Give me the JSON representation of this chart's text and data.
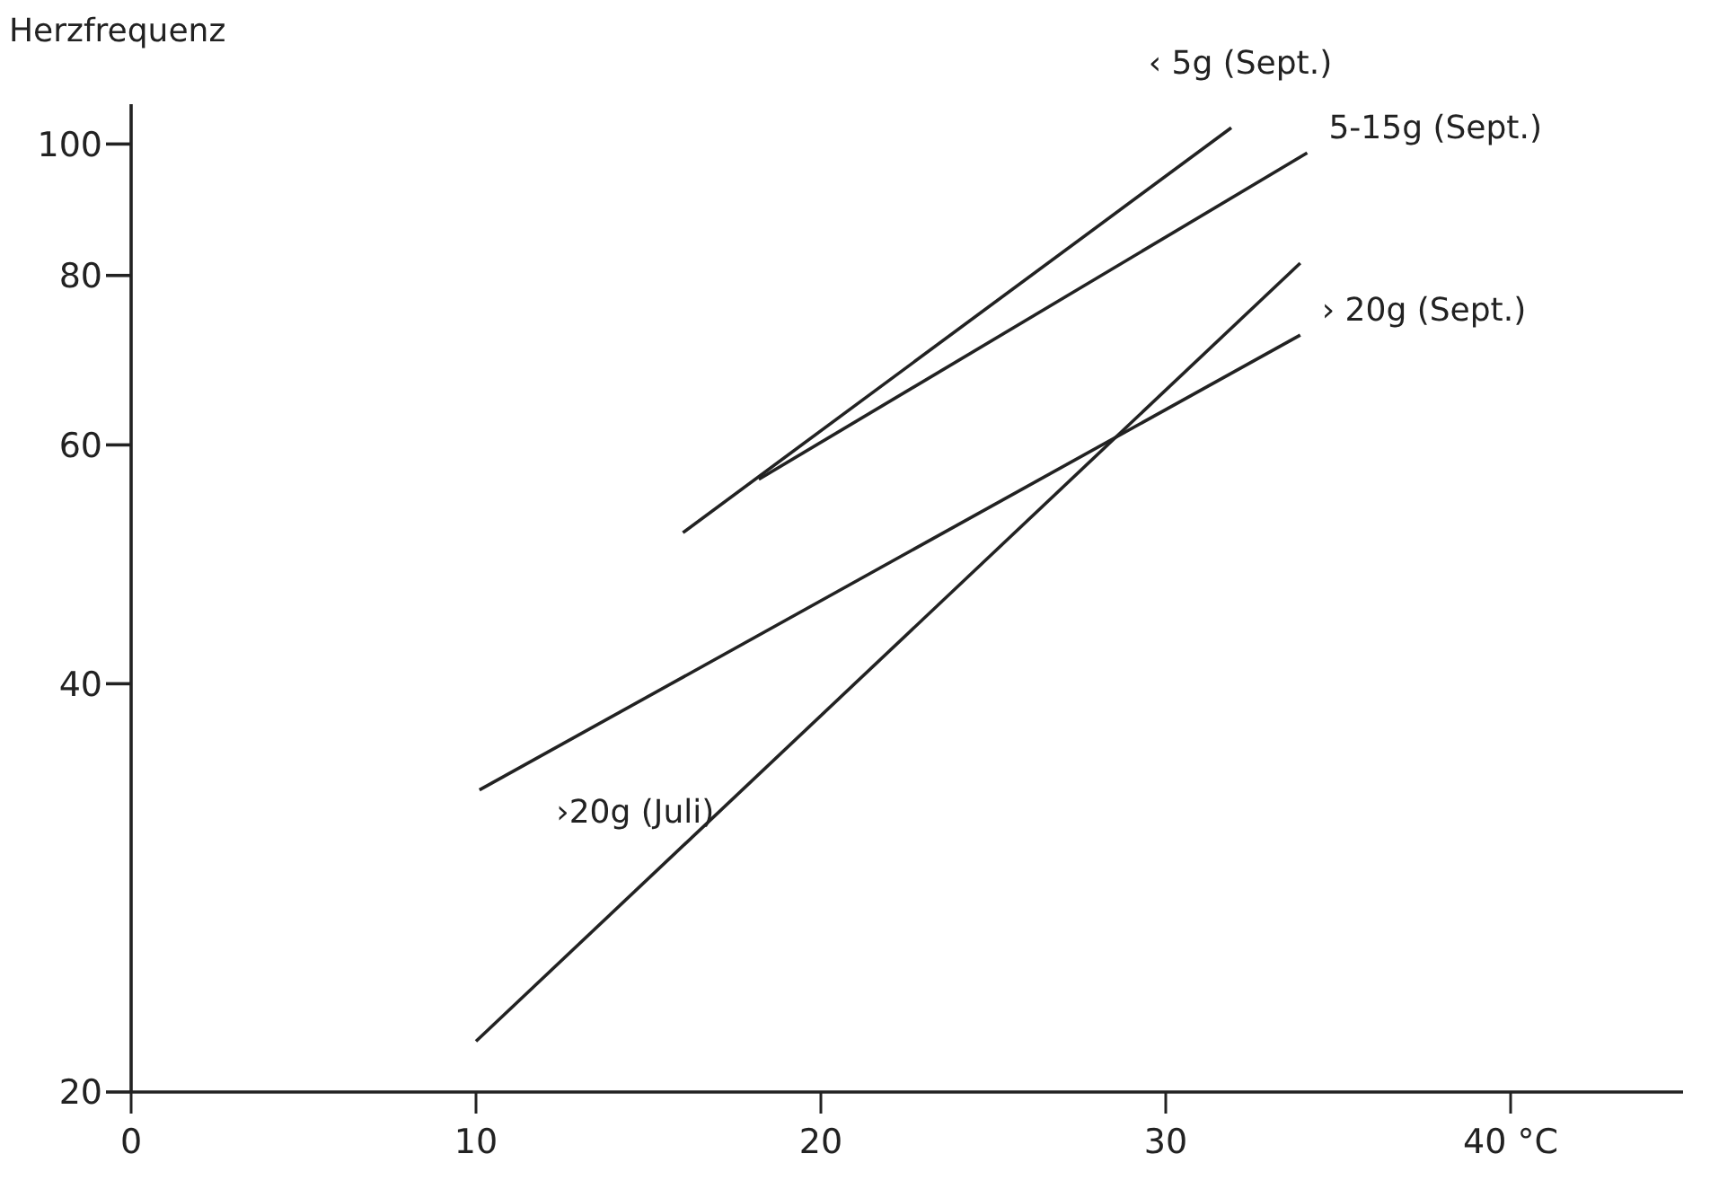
{
  "chart_data": {
    "type": "line",
    "ylabel": "Herzfrequenz",
    "log": "y",
    "xlim": [
      0,
      45
    ],
    "ylim": [
      20,
      107
    ],
    "xticks": [
      0,
      10,
      20,
      30,
      {
        "value": 40,
        "label": "40 °C"
      }
    ],
    "yticks": [
      20,
      40,
      60,
      80,
      100
    ],
    "grid": false,
    "line_style": "solid",
    "series": [
      {
        "name": "‹ 5g (Sept.)",
        "color": "#222222",
        "x": [
          16,
          31.9
        ],
        "values": [
          51.7,
          102.8
        ]
      },
      {
        "name": "5-15g (Sept.)",
        "color": "#222222",
        "x": [
          18.2,
          34.1
        ],
        "values": [
          56.6,
          98.5
        ]
      },
      {
        "name": "› 20g (Sept.)",
        "color": "#222222",
        "x": [
          10.1,
          33.9
        ],
        "values": [
          33.4,
          72.3
        ]
      },
      {
        "name": "›20g (Juli)",
        "color": "#222222",
        "x": [
          10,
          33.9
        ],
        "values": [
          21.8,
          81.7
        ]
      }
    ]
  }
}
